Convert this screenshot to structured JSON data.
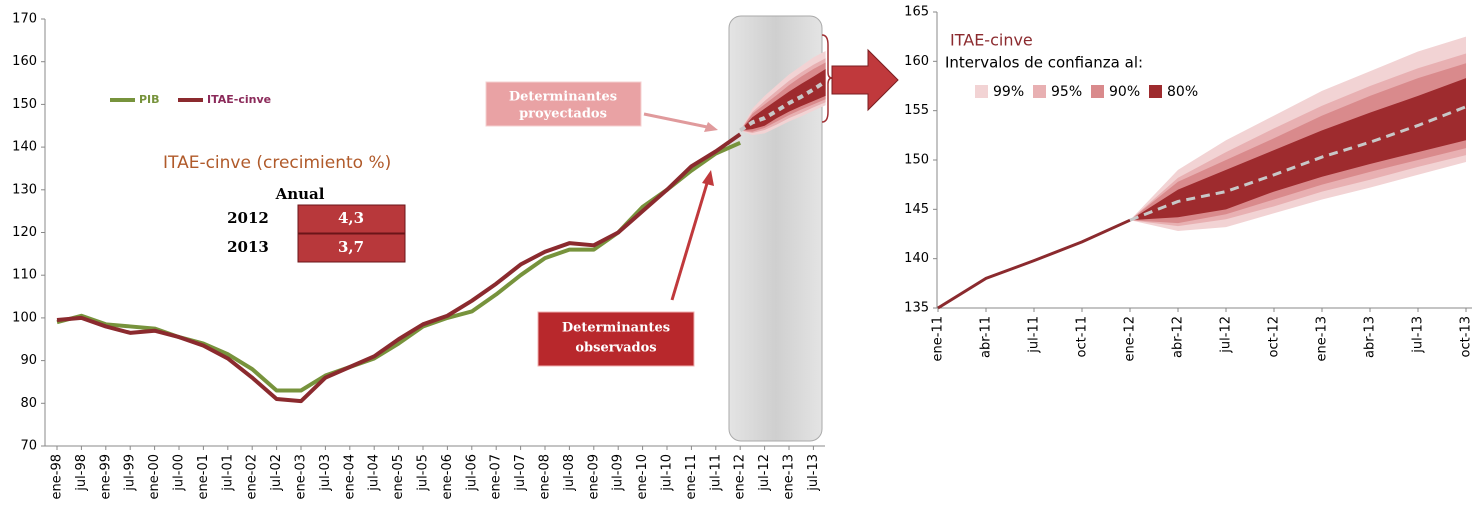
{
  "chart_data": [
    {
      "type": "line",
      "title": "ITAE-cinve (crecimiento %)",
      "categories": [
        "ene-98",
        "jul-98",
        "ene-99",
        "jul-99",
        "ene-00",
        "jul-00",
        "ene-01",
        "jul-01",
        "ene-02",
        "jul-02",
        "ene-03",
        "jul-03",
        "ene-04",
        "jul-04",
        "ene-05",
        "jul-05",
        "ene-06",
        "jul-06",
        "ene-07",
        "jul-07",
        "ene-08",
        "jul-08",
        "ene-09",
        "jul-09",
        "ene-10",
        "jul-10",
        "ene-11",
        "jul-11",
        "ene-12",
        "jul-12",
        "ene-13",
        "jul-13"
      ],
      "series": [
        {
          "name": "PIB",
          "color": "#77933c",
          "values": [
            99,
            100.5,
            98.5,
            98,
            97.5,
            95.5,
            94,
            91.5,
            88,
            83,
            83,
            86.5,
            88.5,
            90.5,
            94,
            98,
            100,
            101.5,
            105.5,
            110,
            114,
            116,
            116,
            120,
            126,
            130,
            134.5,
            138.5,
            141,
            null,
            null,
            null
          ]
        },
        {
          "name": "ITAE-cinve",
          "color": "#8b2a2e",
          "values": [
            99.5,
            100,
            98,
            96.5,
            97,
            95.5,
            93.5,
            90.5,
            86,
            81,
            80.5,
            86,
            88.5,
            91,
            95,
            98.5,
            100.5,
            104,
            108,
            112.5,
            115.5,
            117.5,
            117,
            120,
            125,
            130,
            135.5,
            139,
            143,
            null,
            null,
            null
          ]
        }
      ],
      "ylim": [
        70,
        170
      ],
      "yticks": [
        70,
        80,
        90,
        100,
        110,
        120,
        130,
        140,
        150,
        160,
        170
      ],
      "grid": false,
      "table": {
        "title": "Anual",
        "categories": [
          "2012",
          "2013"
        ],
        "values": [
          4.3,
          3.7
        ],
        "value_labels": [
          "4,3",
          "3,7"
        ]
      },
      "annotations": [
        [
          "Determinantes",
          "proyectados"
        ],
        [
          "Determinantes",
          "observados"
        ]
      ]
    },
    {
      "type": "fan",
      "title": "ITAE-cinve",
      "subtitle": "Intervalos de confianza al:",
      "categories": [
        "ene-11",
        "abr-11",
        "jul-11",
        "oct-11",
        "ene-12",
        "abr-12",
        "jul-12",
        "oct-12",
        "ene-13",
        "abr-13",
        "jul-13",
        "oct-13"
      ],
      "line": {
        "color": "#8b2a2e",
        "values": [
          135,
          138,
          139.8,
          141.7,
          143.9,
          null,
          null,
          null,
          null,
          null,
          null,
          null
        ]
      },
      "projection": {
        "color": "#c8c8c8",
        "values": [
          null,
          null,
          null,
          null,
          143.9,
          145.8,
          146.8,
          148.5,
          150.3,
          151.8,
          153.5,
          155.4
        ]
      },
      "series": [
        {
          "name": "99%",
          "color": "#f2d3d4",
          "upper": [
            null,
            null,
            null,
            null,
            143.9,
            149,
            152,
            154.5,
            157,
            159,
            161,
            162.5
          ],
          "lower": [
            null,
            null,
            null,
            null,
            143.9,
            142.8,
            143.2,
            144.6,
            146,
            147.2,
            148.5,
            149.8
          ]
        },
        {
          "name": "95%",
          "color": "#e8b0b2",
          "upper": [
            null,
            null,
            null,
            null,
            143.9,
            148.2,
            150.8,
            153.2,
            155.5,
            157.5,
            159.3,
            160.8
          ],
          "lower": [
            null,
            null,
            null,
            null,
            143.9,
            143.3,
            144,
            145.3,
            146.8,
            148,
            149.3,
            150.5
          ]
        },
        {
          "name": "90%",
          "color": "#d98a8c",
          "upper": [
            null,
            null,
            null,
            null,
            143.9,
            147.8,
            150,
            152.2,
            154.5,
            156.5,
            158.3,
            159.8
          ],
          "lower": [
            null,
            null,
            null,
            null,
            143.9,
            143.6,
            144.5,
            146,
            147.5,
            148.8,
            150,
            151.2
          ]
        },
        {
          "name": "80%",
          "color": "#9e2b2e",
          "upper": [
            null,
            null,
            null,
            null,
            143.9,
            147,
            149,
            151,
            153,
            154.8,
            156.5,
            158.3
          ],
          "lower": [
            null,
            null,
            null,
            null,
            143.9,
            144.2,
            145,
            146.8,
            148.3,
            149.6,
            150.8,
            152
          ]
        }
      ],
      "ylim": [
        135,
        165
      ],
      "yticks": [
        135,
        140,
        145,
        150,
        155,
        160,
        165
      ],
      "grid": false
    }
  ]
}
